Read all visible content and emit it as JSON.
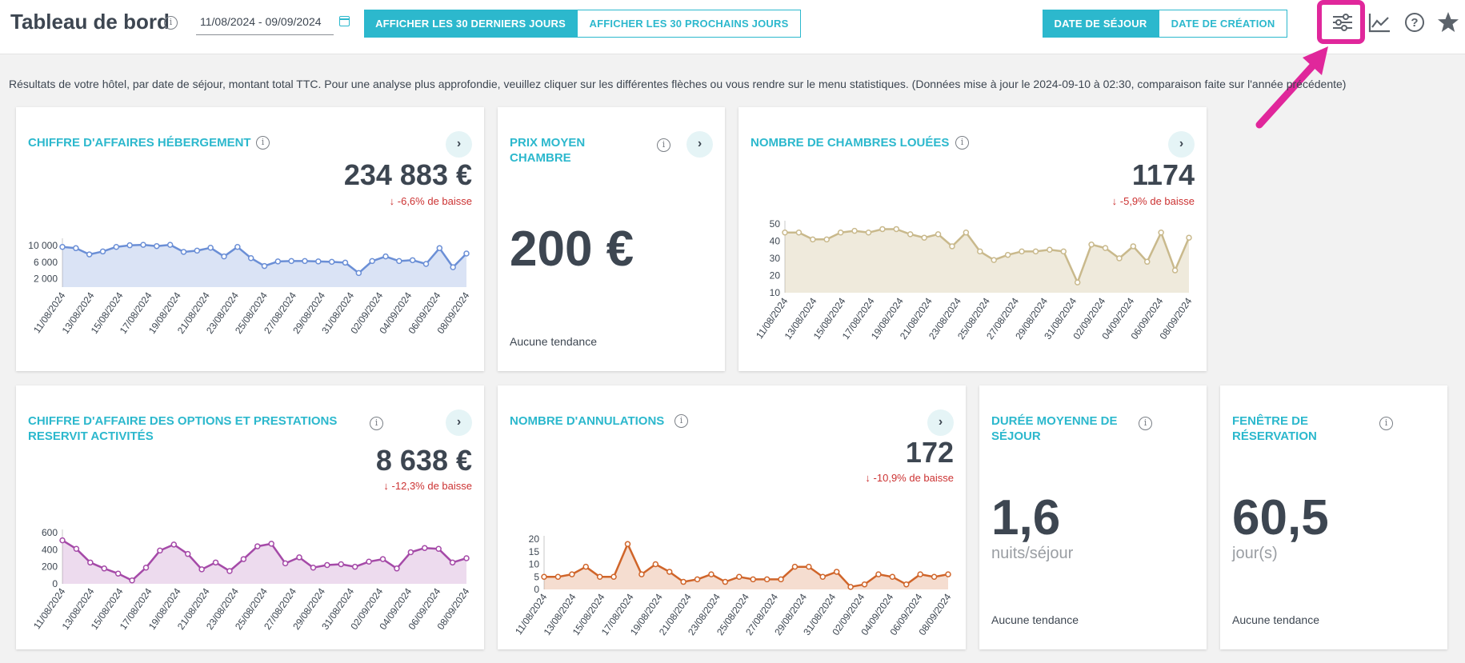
{
  "header": {
    "title": "Tableau de bord",
    "date_range": "11/08/2024 - 09/09/2024",
    "btn_last30": "AFFICHER LES 30 DERNIERS JOURS",
    "btn_next30": "AFFICHER LES 30 PROCHAINS JOURS",
    "btn_stay_date": "DATE DE SÉJOUR",
    "btn_creation_date": "DATE DE CRÉATION",
    "icons": [
      "filter-sliders-icon",
      "line-chart-icon",
      "help-icon",
      "star-icon"
    ]
  },
  "description": "Résultats de votre hôtel, par date de séjour, montant total TTC. Pour une analyse plus approfondie, veuillez cliquer sur les différentes flèches ou vous rendre sur le menu statistiques. (Données mise à jour le 2024-09-10 à 02:30, comparaison faite sur l'année précédente)",
  "colors": {
    "accent": "#2cb8cd",
    "negative": "#cc3333",
    "highlight": "#e0279b",
    "series_blue": "#6b8fd6",
    "series_tan": "#c9b98c",
    "series_purple": "#a54aa8",
    "series_orange": "#d0652a"
  },
  "x_labels": [
    "11/08/2024",
    "13/08/2024",
    "15/08/2024",
    "17/08/2024",
    "19/08/2024",
    "21/08/2024",
    "23/08/2024",
    "25/08/2024",
    "27/08/2024",
    "29/08/2024",
    "31/08/2024",
    "02/09/2024",
    "04/09/2024",
    "06/09/2024",
    "08/09/2024"
  ],
  "cards": {
    "revenue": {
      "title": "CHIFFRE D'AFFAIRES HÉBERGEMENT",
      "value": "234 883 €",
      "trend": "-6,6% de baisse"
    },
    "avg_price": {
      "title": "PRIX MOYEN CHAMBRE",
      "value": "200 €",
      "no_trend": "Aucune tendance"
    },
    "rooms": {
      "title": "NOMBRE DE CHAMBRES LOUÉES",
      "value": "1174",
      "trend": "-5,9% de baisse"
    },
    "options": {
      "title": "CHIFFRE D'AFFAIRE DES OPTIONS ET PRESTATIONS RESERVIT ACTIVITÉS",
      "value": "8 638 €",
      "trend": "-12,3% de baisse"
    },
    "cancellations": {
      "title": "NOMBRE D'ANNULATIONS",
      "value": "172",
      "trend": "-10,9% de baisse"
    },
    "avg_stay": {
      "title": "DURÉE MOYENNE DE SÉJOUR",
      "value": "1,6",
      "unit": "nuits/séjour",
      "no_trend": "Aucune tendance"
    },
    "booking_window": {
      "title": "FENÊTRE DE RÉSERVATION",
      "value": "60,5",
      "unit": "jour(s)",
      "no_trend": "Aucune tendance"
    }
  },
  "chart_data": [
    {
      "id": "revenue",
      "type": "area",
      "ylim": [
        0,
        11000
      ],
      "yticks": [
        {
          "v": 2000,
          "label": "2 000"
        },
        {
          "v": 6000,
          "label": "6 000"
        },
        {
          "v": 10000,
          "label": "10 000"
        }
      ],
      "series": [
        {
          "values": [
            9700,
            9400,
            7900,
            8600,
            9700,
            10100,
            10200,
            9900,
            10200,
            8500,
            8800,
            9500,
            7400,
            9700,
            7000,
            5100,
            6200,
            6300,
            6300,
            6200,
            6100,
            5900,
            3400,
            6300,
            7400,
            6300,
            6500,
            5600,
            9400,
            4800,
            8100
          ]
        }
      ]
    },
    {
      "id": "rooms",
      "type": "area",
      "ylim": [
        10,
        50
      ],
      "yticks": [
        {
          "v": 10,
          "label": "10"
        },
        {
          "v": 20,
          "label": "20"
        },
        {
          "v": 30,
          "label": "30"
        },
        {
          "v": 40,
          "label": "40"
        },
        {
          "v": 50,
          "label": "50"
        }
      ],
      "series": [
        {
          "values": [
            45,
            45,
            41,
            41,
            45,
            46,
            45,
            47,
            47,
            44,
            42,
            44,
            37,
            45,
            34,
            29,
            32,
            34,
            34,
            35,
            34,
            16,
            38,
            36,
            30,
            37,
            28,
            45,
            23,
            42
          ]
        }
      ]
    },
    {
      "id": "options",
      "type": "area",
      "ylim": [
        0,
        600
      ],
      "yticks": [
        {
          "v": 0,
          "label": "0"
        },
        {
          "v": 200,
          "label": "200"
        },
        {
          "v": 400,
          "label": "400"
        },
        {
          "v": 600,
          "label": "600"
        }
      ],
      "series": [
        {
          "values": [
            510,
            410,
            250,
            180,
            120,
            40,
            190,
            390,
            460,
            350,
            170,
            250,
            150,
            290,
            440,
            470,
            240,
            310,
            190,
            220,
            230,
            200,
            260,
            290,
            180,
            370,
            420,
            410,
            250,
            300
          ]
        }
      ]
    },
    {
      "id": "cancellations",
      "type": "area",
      "ylim": [
        0,
        20
      ],
      "yticks": [
        {
          "v": 0,
          "label": "0"
        },
        {
          "v": 5,
          "label": "5"
        },
        {
          "v": 10,
          "label": "10"
        },
        {
          "v": 15,
          "label": "15"
        },
        {
          "v": 20,
          "label": "20"
        }
      ],
      "series": [
        {
          "values": [
            5,
            5,
            6,
            9,
            5,
            5,
            18,
            6,
            10,
            7,
            3,
            4,
            6,
            3,
            5,
            4,
            4,
            4,
            9,
            9,
            5,
            7,
            1,
            2,
            6,
            5,
            2,
            6,
            5,
            6
          ]
        }
      ]
    }
  ]
}
